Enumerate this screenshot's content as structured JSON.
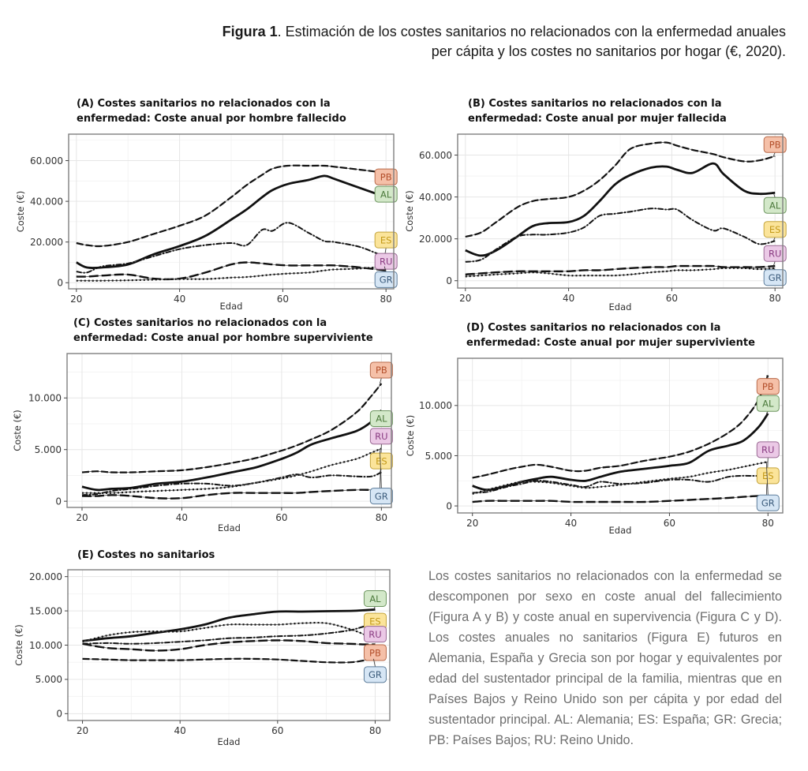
{
  "figure": {
    "label": "Figura 1",
    "title_rest": ". Estimación de los costes sanitarios no relacionados con la enfermedad anuales per cápita y los costes no sanitarios por hogar (€, 2020)."
  },
  "caption": "Los costes sanitarios no relacionados con la enfermedad se descomponen por sexo en coste anual del fallecimiento (Figura A y B) y coste anual en supervivencia (Figura C y D). Los costes anuales no sanitarios (Figura E) futuros en Alemania, España y Grecia son por hogar y equivalentes por edad del sustentador principal de la familia, mientras que en Países Bajos y Reino Unido son per cápita y por edad del sustentador principal. AL: Alemania; ES: España; GR: Grecia; PB: Países Bajos; RU: Reino Unido.",
  "label_colors": {
    "PB": {
      "fill": "#f5c0a8",
      "stroke": "#b86a4a",
      "text": "#b4502c"
    },
    "AL": {
      "fill": "#d3e8c9",
      "stroke": "#6e9660",
      "text": "#4c7a3c"
    },
    "ES": {
      "fill": "#fbe49a",
      "stroke": "#c4a43c",
      "text": "#c49a1a"
    },
    "RU": {
      "fill": "#ebc9e6",
      "stroke": "#9a6a94",
      "text": "#8a3c82"
    },
    "GR": {
      "fill": "#d6e6f5",
      "stroke": "#5c7c9a",
      "text": "#3c5c7c"
    }
  },
  "chart_data": [
    {
      "id": "A",
      "type": "line",
      "title_line1": "(A) Costes sanitarios no relacionados con la",
      "title_line2": "enfermedad: Coste anual por hombre fallecido",
      "xlabel": "Edad",
      "ylabel": "Coste (€)",
      "xlim": [
        18.5,
        81.5
      ],
      "ylim": [
        -3000,
        73000
      ],
      "xticks": [
        20,
        40,
        60,
        80
      ],
      "yticks": [
        0,
        20000,
        40000,
        60000
      ],
      "ytick_labels": [
        "0",
        "20.000",
        "40.000",
        "60.000"
      ],
      "grid": true,
      "x": [
        20,
        22,
        25,
        30,
        35,
        40,
        45,
        50,
        53,
        56,
        58,
        61,
        65,
        68,
        70,
        75,
        80
      ],
      "series": [
        {
          "name": "PB",
          "style": "dashed",
          "values": [
            19500,
            18500,
            18000,
            20000,
            24000,
            28000,
            33000,
            42000,
            48000,
            53000,
            56000,
            57500,
            57500,
            57500,
            57000,
            55500,
            54000
          ]
        },
        {
          "name": "AL",
          "style": "solid",
          "values": [
            10000,
            7500,
            7500,
            9000,
            14000,
            18000,
            23000,
            31000,
            36000,
            42000,
            45500,
            48500,
            50500,
            52500,
            51000,
            46500,
            42000
          ]
        },
        {
          "name": "ES",
          "style": "dashdot",
          "values": [
            5500,
            5000,
            8000,
            9500,
            13000,
            16500,
            18500,
            19500,
            18500,
            26000,
            25500,
            29500,
            24500,
            20500,
            20000,
            17500,
            12500
          ]
        },
        {
          "name": "RU",
          "style": "longdash",
          "values": [
            3000,
            3000,
            3500,
            4000,
            2000,
            2000,
            5000,
            9000,
            10000,
            9500,
            9000,
            8500,
            8500,
            8500,
            8500,
            7500,
            6000
          ]
        },
        {
          "name": "GR",
          "style": "dotted",
          "values": [
            1000,
            1000,
            1000,
            1200,
            1500,
            1800,
            1800,
            2500,
            2800,
            3500,
            4000,
            4500,
            5000,
            6000,
            6500,
            7000,
            8000
          ]
        }
      ],
      "end_labels": [
        {
          "name": "PB",
          "value": 52000
        },
        {
          "name": "AL",
          "value": 43500
        },
        {
          "name": "ES",
          "value": 21000
        },
        {
          "name": "RU",
          "value": 10500
        },
        {
          "name": "GR",
          "value": 1500
        }
      ]
    },
    {
      "id": "B",
      "type": "line",
      "title_line1": "(B) Costes sanitarios no relacionados con la",
      "title_line2": "enfermedad: Coste anual por mujer fallecida",
      "xlabel": "Edad",
      "ylabel": "Coste (€)",
      "xlim": [
        18.5,
        81.5
      ],
      "ylim": [
        -3500,
        70000
      ],
      "xticks": [
        20,
        40,
        60,
        80
      ],
      "yticks": [
        0,
        20000,
        40000,
        60000
      ],
      "ytick_labels": [
        "0",
        "20.000",
        "40.000",
        "60.000"
      ],
      "grid": true,
      "x": [
        20,
        23,
        26,
        30,
        33,
        36,
        40,
        43,
        46,
        49,
        52,
        56,
        59,
        61,
        64,
        68,
        70,
        74,
        77,
        80
      ],
      "series": [
        {
          "name": "PB",
          "style": "dashed",
          "values": [
            21000,
            23000,
            28000,
            35000,
            38000,
            39000,
            40000,
            43000,
            48000,
            55000,
            63000,
            65500,
            66000,
            64500,
            62500,
            60500,
            59000,
            57000,
            57500,
            59500
          ]
        },
        {
          "name": "AL",
          "style": "solid",
          "values": [
            14500,
            12000,
            14500,
            21000,
            26000,
            27500,
            28000,
            31000,
            38000,
            46000,
            50500,
            54000,
            54500,
            53000,
            51500,
            56000,
            51000,
            43000,
            41500,
            42000
          ]
        },
        {
          "name": "ES",
          "style": "dashdot",
          "values": [
            9000,
            10000,
            15000,
            21000,
            22000,
            22000,
            23000,
            25500,
            31000,
            32000,
            33000,
            34500,
            34000,
            34000,
            29000,
            24000,
            25000,
            21000,
            17500,
            19000
          ]
        },
        {
          "name": "RU",
          "style": "longdash",
          "values": [
            3000,
            3500,
            4000,
            4500,
            4500,
            4500,
            4500,
            5000,
            5000,
            5500,
            6000,
            6500,
            6500,
            7000,
            7000,
            7000,
            6500,
            6500,
            6500,
            7000
          ]
        },
        {
          "name": "GR",
          "style": "dotted",
          "values": [
            2000,
            2500,
            3000,
            3500,
            4000,
            3500,
            2500,
            2500,
            2500,
            2500,
            3000,
            4000,
            4500,
            5000,
            5000,
            5500,
            6000,
            6000,
            5500,
            6000
          ]
        }
      ],
      "end_labels": [
        {
          "name": "PB",
          "value": 65000
        },
        {
          "name": "AL",
          "value": 36000
        },
        {
          "name": "ES",
          "value": 24500
        },
        {
          "name": "RU",
          "value": 13000
        },
        {
          "name": "GR",
          "value": 1500
        }
      ]
    },
    {
      "id": "C",
      "type": "line",
      "title_line1": "(C) Costes sanitarios no relacionados con la",
      "title_line2": "enfermedad: Coste anual por hombre superviviente",
      "xlabel": "Edad",
      "ylabel": "Coste (€)",
      "xlim": [
        17,
        82
      ],
      "ylim": [
        -600,
        14300
      ],
      "xticks": [
        20,
        40,
        60,
        80
      ],
      "yticks": [
        0,
        5000,
        10000
      ],
      "ytick_labels": [
        "0",
        "5.000",
        "10.000"
      ],
      "grid": true,
      "x": [
        20,
        23,
        26,
        30,
        35,
        40,
        45,
        50,
        55,
        60,
        63,
        66,
        70,
        75,
        78,
        80
      ],
      "series": [
        {
          "name": "PB",
          "style": "dashed",
          "values": [
            2800,
            2900,
            2800,
            2800,
            2900,
            3000,
            3300,
            3700,
            4200,
            4900,
            5400,
            6000,
            6900,
            8600,
            10200,
            11400
          ]
        },
        {
          "name": "AL",
          "style": "solid",
          "values": [
            1400,
            1100,
            1200,
            1300,
            1700,
            1900,
            2300,
            2800,
            3300,
            4100,
            4700,
            5500,
            6100,
            6800,
            7700,
            8800
          ]
        },
        {
          "name": "ES",
          "style": "dashdot",
          "values": [
            600,
            700,
            1000,
            1200,
            1500,
            1700,
            1700,
            1500,
            1800,
            2300,
            2600,
            2300,
            2500,
            2400,
            2400,
            2800
          ]
        },
        {
          "name": "RU",
          "style": "longdash",
          "values": [
            500,
            500,
            600,
            500,
            300,
            300,
            600,
            800,
            800,
            800,
            800,
            900,
            1000,
            1100,
            1100,
            1100
          ]
        },
        {
          "name": "GR",
          "style": "dotted",
          "values": [
            800,
            800,
            800,
            900,
            1000,
            1100,
            1200,
            1400,
            1800,
            2200,
            2500,
            2900,
            3500,
            4100,
            4700,
            5100
          ]
        }
      ],
      "end_labels": [
        {
          "name": "PB",
          "value": 12700
        },
        {
          "name": "AL",
          "value": 8000
        },
        {
          "name": "RU",
          "value": 6300
        },
        {
          "name": "ES",
          "value": 3900
        },
        {
          "name": "GR",
          "value": 500
        }
      ]
    },
    {
      "id": "D",
      "type": "line",
      "title_line1": "(D) Costes sanitarios no relacionados con la",
      "title_line2": "enfermedad: Coste anual por mujer superviviente",
      "xlabel": "Edad",
      "ylabel": "Coste (€)",
      "xlim": [
        17,
        83
      ],
      "ylim": [
        -700,
        14700
      ],
      "xticks": [
        20,
        40,
        60,
        80
      ],
      "yticks": [
        0,
        5000,
        10000
      ],
      "ytick_labels": [
        "0",
        "5.000",
        "10.000"
      ],
      "grid": true,
      "x": [
        20,
        23,
        27,
        30,
        33,
        36,
        40,
        43,
        46,
        50,
        55,
        60,
        64,
        68,
        72,
        75,
        78,
        80
      ],
      "series": [
        {
          "name": "PB",
          "style": "dashed",
          "values": [
            2800,
            3100,
            3600,
            3900,
            4100,
            3900,
            3500,
            3500,
            3800,
            4000,
            4500,
            4900,
            5400,
            6200,
            7300,
            8500,
            10500,
            13000
          ]
        },
        {
          "name": "AL",
          "style": "solid",
          "values": [
            2000,
            1600,
            2000,
            2400,
            2700,
            2900,
            2600,
            2500,
            2900,
            3400,
            3700,
            4000,
            4300,
            5500,
            6000,
            6500,
            7800,
            9200
          ]
        },
        {
          "name": "ES",
          "style": "dashdot",
          "values": [
            1300,
            1400,
            1900,
            2200,
            2500,
            2400,
            2100,
            1900,
            2400,
            2200,
            2300,
            2600,
            2600,
            2400,
            2900,
            3000,
            3000,
            3200
          ]
        },
        {
          "name": "RU",
          "style": "longdash",
          "values": [
            400,
            500,
            500,
            500,
            500,
            500,
            400,
            400,
            400,
            400,
            400,
            500,
            600,
            700,
            800,
            900,
            1000,
            1000
          ]
        },
        {
          "name": "GR",
          "style": "dotted",
          "values": [
            1200,
            1600,
            2100,
            2400,
            2400,
            2300,
            2000,
            1800,
            1900,
            2100,
            2400,
            2700,
            2900,
            3300,
            3600,
            3900,
            4200,
            4400
          ]
        }
      ],
      "end_labels": [
        {
          "name": "PB",
          "value": 11900
        },
        {
          "name": "AL",
          "value": 10200
        },
        {
          "name": "RU",
          "value": 5600
        },
        {
          "name": "ES",
          "value": 3000
        },
        {
          "name": "GR",
          "value": 300
        }
      ]
    },
    {
      "id": "E",
      "type": "line",
      "title_line1": "(E) Costes no sanitarios",
      "title_line2": "",
      "xlabel": "Edad",
      "ylabel": "Coste (€)",
      "xlim": [
        17,
        83
      ],
      "ylim": [
        -1000,
        21000
      ],
      "xticks": [
        20,
        40,
        60,
        80
      ],
      "yticks": [
        0,
        5000,
        10000,
        15000,
        20000
      ],
      "ytick_labels": [
        "0",
        "5.000",
        "10.000",
        "15.000",
        "20.000"
      ],
      "grid": true,
      "x": [
        20,
        25,
        30,
        35,
        40,
        45,
        50,
        55,
        60,
        65,
        70,
        75,
        78,
        80
      ],
      "series": [
        {
          "name": "AL",
          "style": "solid",
          "values": [
            10600,
            11000,
            11300,
            11800,
            12300,
            13000,
            14000,
            14500,
            14900,
            14900,
            14950,
            15000,
            15100,
            15200
          ]
        },
        {
          "name": "ES",
          "style": "dashdot",
          "values": [
            10200,
            10300,
            10200,
            10300,
            10500,
            10700,
            11000,
            11100,
            11300,
            11400,
            11700,
            12200,
            12800,
            13200
          ]
        },
        {
          "name": "RU",
          "style": "dotted",
          "values": [
            10500,
            11400,
            11900,
            12000,
            12000,
            12500,
            13000,
            13000,
            13000,
            13200,
            13200,
            12300,
            11500,
            11000
          ]
        },
        {
          "name": "PB",
          "style": "longdash",
          "values": [
            10200,
            9600,
            9400,
            9200,
            9400,
            10000,
            10400,
            10600,
            10700,
            10600,
            10300,
            10200,
            10100,
            10100
          ]
        },
        {
          "name": "GR",
          "style": "dashed",
          "values": [
            8000,
            7900,
            7800,
            7800,
            7800,
            7900,
            8000,
            8000,
            7900,
            7700,
            7500,
            7500,
            7800,
            8000
          ]
        }
      ],
      "end_labels": [
        {
          "name": "AL",
          "value": 16800
        },
        {
          "name": "ES",
          "value": 13500
        },
        {
          "name": "RU",
          "value": 11600
        },
        {
          "name": "PB",
          "value": 8900
        },
        {
          "name": "GR",
          "value": 5700
        }
      ]
    }
  ]
}
